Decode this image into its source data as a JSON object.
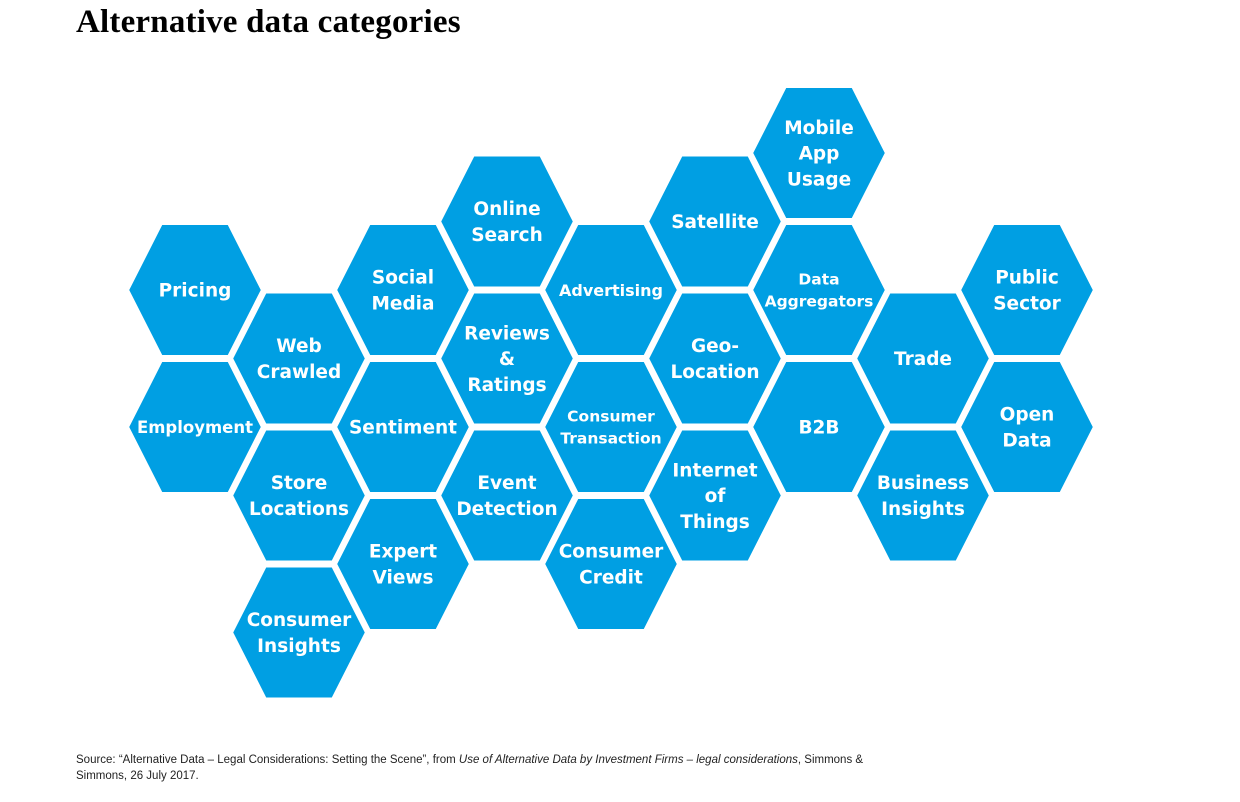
{
  "title": "Alternative data categories",
  "colors": {
    "hex_fill": "#009FE3",
    "hex_stroke": "#ffffff",
    "label": "#ffffff"
  },
  "categories": [
    {
      "id": "pricing",
      "lines": [
        "Pricing"
      ],
      "col": 0,
      "row": 0
    },
    {
      "id": "employment",
      "lines": [
        "Employment"
      ],
      "col": 0,
      "row": 2
    },
    {
      "id": "web-crawled",
      "lines": [
        "Web",
        "Crawled"
      ],
      "col": 1,
      "row": 1
    },
    {
      "id": "store-locations",
      "lines": [
        "Store",
        "Locations"
      ],
      "col": 1,
      "row": 3
    },
    {
      "id": "consumer-insights",
      "lines": [
        "Consumer",
        "Insights"
      ],
      "col": 1,
      "row": 5
    },
    {
      "id": "social-media",
      "lines": [
        "Social",
        "Media"
      ],
      "col": 2,
      "row": 0
    },
    {
      "id": "sentiment",
      "lines": [
        "Sentiment"
      ],
      "col": 2,
      "row": 2
    },
    {
      "id": "expert-views",
      "lines": [
        "Expert",
        "Views"
      ],
      "col": 2,
      "row": 4
    },
    {
      "id": "online-search",
      "lines": [
        "Online",
        "Search"
      ],
      "col": 3,
      "row": -1
    },
    {
      "id": "reviews-ratings",
      "lines": [
        "Reviews",
        "&",
        "Ratings"
      ],
      "col": 3,
      "row": 1
    },
    {
      "id": "event-detection",
      "lines": [
        "Event",
        "Detection"
      ],
      "col": 3,
      "row": 3
    },
    {
      "id": "advertising",
      "lines": [
        "Advertising"
      ],
      "col": 4,
      "row": 0
    },
    {
      "id": "consumer-transaction",
      "lines": [
        "Consumer",
        "Transaction"
      ],
      "col": 4,
      "row": 2
    },
    {
      "id": "consumer-credit",
      "lines": [
        "Consumer",
        "Credit"
      ],
      "col": 4,
      "row": 4
    },
    {
      "id": "satellite",
      "lines": [
        "Satellite"
      ],
      "col": 5,
      "row": -1
    },
    {
      "id": "geo-location",
      "lines": [
        "Geo-",
        "Location"
      ],
      "col": 5,
      "row": 1
    },
    {
      "id": "internet-of-things",
      "lines": [
        "Internet",
        "of",
        "Things"
      ],
      "col": 5,
      "row": 3
    },
    {
      "id": "mobile-app-usage",
      "lines": [
        "Mobile",
        "App",
        "Usage"
      ],
      "col": 6,
      "row": -2
    },
    {
      "id": "data-aggregators",
      "lines": [
        "Data",
        "Aggregators"
      ],
      "col": 6,
      "row": 0
    },
    {
      "id": "b2b",
      "lines": [
        "B2B"
      ],
      "col": 6,
      "row": 2
    },
    {
      "id": "trade",
      "lines": [
        "Trade"
      ],
      "col": 7,
      "row": 1
    },
    {
      "id": "business-insights",
      "lines": [
        "Business",
        "Insights"
      ],
      "col": 7,
      "row": 3
    },
    {
      "id": "public-sector",
      "lines": [
        "Public",
        "Sector"
      ],
      "col": 8,
      "row": 0
    },
    {
      "id": "open-data",
      "lines": [
        "Open",
        "Data"
      ],
      "col": 8,
      "row": 2
    }
  ],
  "source": {
    "prefix": "Source: “Alternative Data – Legal Considerations: Setting the Scene”, from ",
    "italic": "Use of Alternative Data by Investment Firms – legal considerations",
    "suffix": ", Simmons & Simmons, 26 July 2017."
  }
}
